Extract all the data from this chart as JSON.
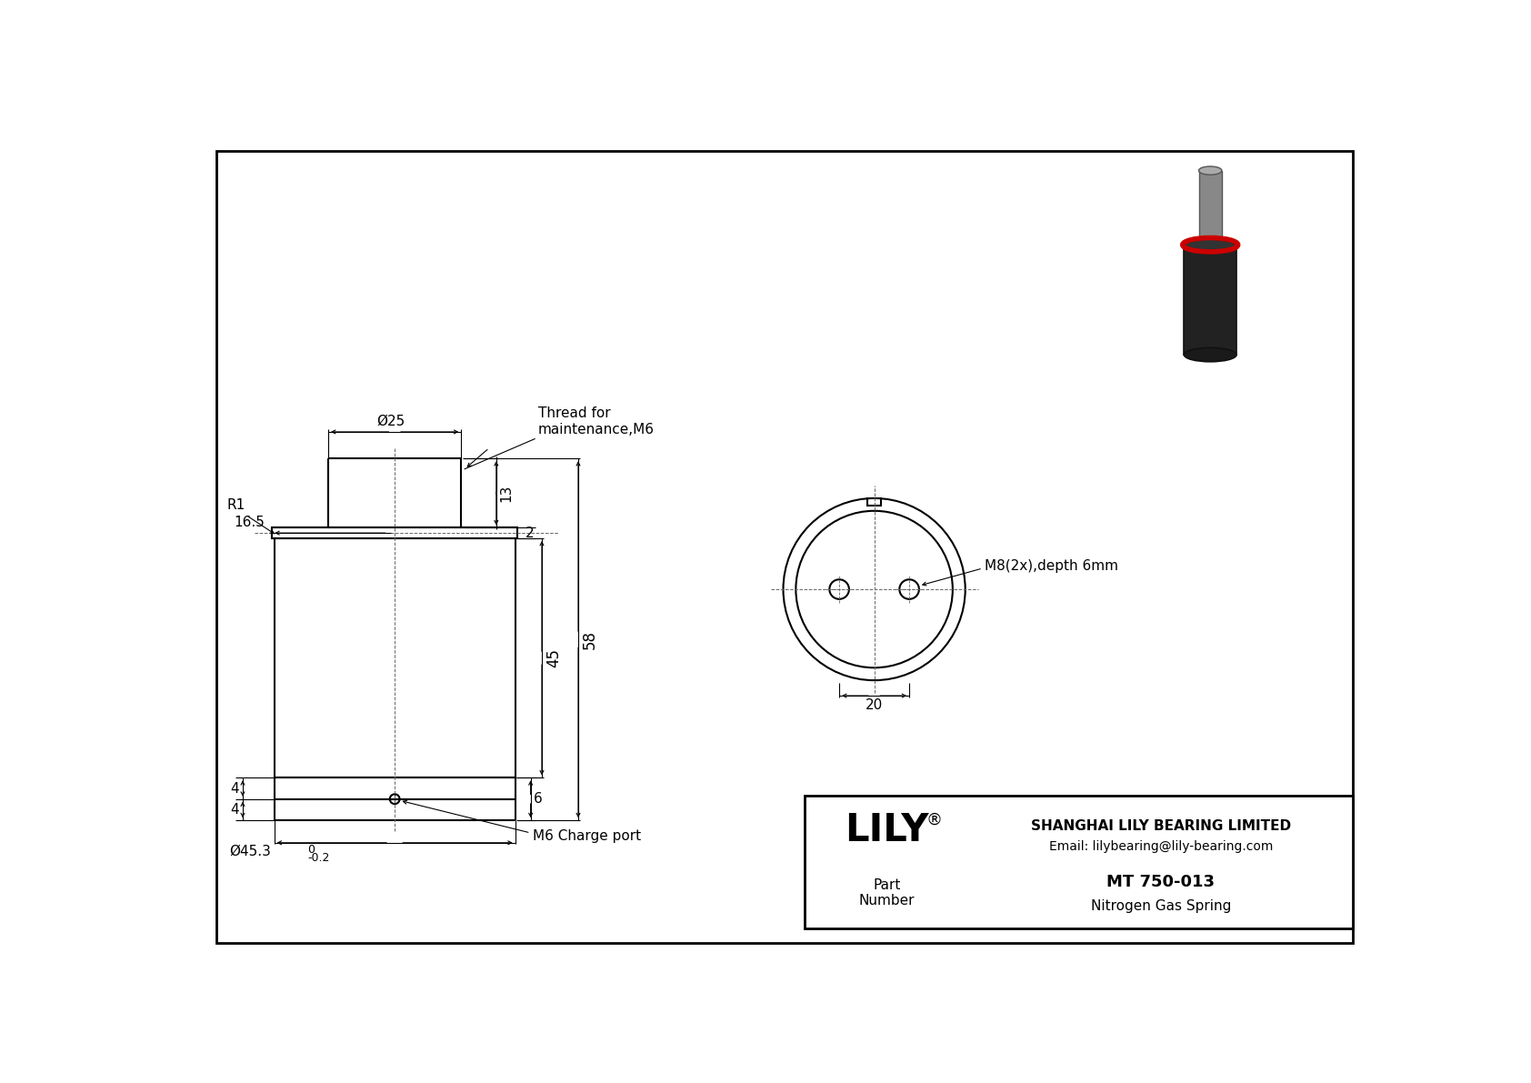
{
  "bg_color": "#ffffff",
  "line_color": "#000000",
  "dim_color": "#000000",
  "title": "MT 750-013",
  "subtitle": "Nitrogen Gas Spring",
  "company": "SHANGHAI LILY BEARING LIMITED",
  "email": "Email: lilybearing@lily-bearing.com",
  "part_label": "Part\nNumber",
  "logo": "LILY",
  "logo_sup": "®",
  "annotations": {
    "phi25": "Ø25",
    "thread": "Thread for\nmaintenance,M6",
    "dim_16p5": "16.5",
    "dim_13": "13",
    "dim_2": "2",
    "dim_58": "58",
    "dim_45": "45",
    "dim_4a": "4",
    "dim_4b": "4",
    "dim_6": "6",
    "dim_r1": "R1",
    "phi45": "Ø45.3",
    "tol": "-0.2",
    "zero": "0",
    "charge": "M6 Charge port",
    "dim_20": "20",
    "m8": "M8(2x),depth 6mm"
  },
  "lw_main": 1.5,
  "lw_dim": 0.8,
  "lw_border": 2.0,
  "fs_dim": 11,
  "fs_logo": 30,
  "fs_company": 11,
  "fs_title": 13
}
